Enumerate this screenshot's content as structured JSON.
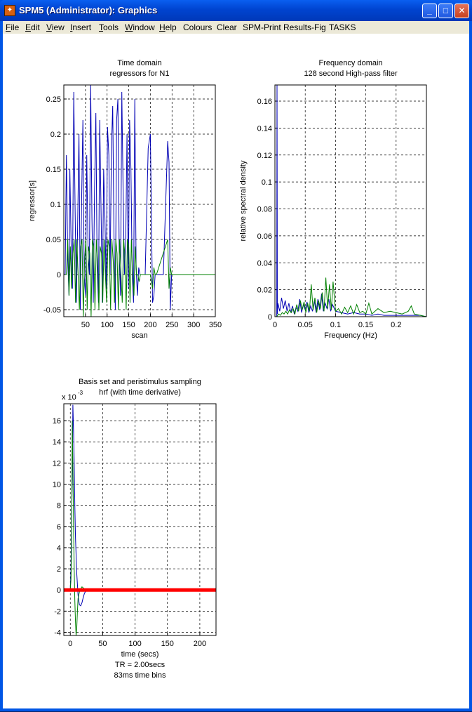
{
  "window": {
    "title": "SPM5 (Administrator): Graphics",
    "minimize_glyph": "_",
    "maximize_glyph": "□",
    "close_glyph": "✕"
  },
  "menu": {
    "items": [
      {
        "label": "File",
        "key": "F",
        "rest": "ile"
      },
      {
        "label": "Edit",
        "key": "E",
        "rest": "dit"
      },
      {
        "label": "View",
        "key": "V",
        "rest": "iew"
      },
      {
        "label": "Insert",
        "key": "I",
        "rest": "nsert"
      },
      {
        "label": "Tools",
        "key": "T",
        "rest": "ools"
      },
      {
        "label": "Window",
        "key": "W",
        "rest": "indow"
      },
      {
        "label": "Help",
        "key": "H",
        "rest": "elp"
      },
      {
        "label": "Colours",
        "key": "",
        "rest": "Colours"
      },
      {
        "label": "Clear",
        "key": "",
        "rest": "Clear"
      },
      {
        "label": "SPM-Print",
        "key": "",
        "rest": "SPM-Print"
      },
      {
        "label": "Results-Fig",
        "key": "",
        "rest": "Results-Fig"
      },
      {
        "label": "TASKS",
        "key": "",
        "rest": "TASKS"
      }
    ]
  },
  "colors": {
    "series_blue": "#0000b4",
    "series_green": "#008000",
    "zero_line_red": "#ff0000"
  },
  "chart_data": [
    {
      "type": "line",
      "title": "Time domain",
      "subtitle": "regressors for N1",
      "xlabel": "scan",
      "ylabel": "regressor[s]",
      "xlim": [
        0,
        350
      ],
      "ylim": [
        -0.06,
        0.27
      ],
      "xticks": [
        50,
        100,
        150,
        200,
        250,
        300,
        350
      ],
      "yticks": [
        -0.05,
        0,
        0.05,
        0.1,
        0.15,
        0.2,
        0.25
      ],
      "ytick_labels": [
        "-0.05",
        "0",
        "0.05",
        "0.1",
        "0.15",
        "0.2",
        "0.25"
      ],
      "grid": true,
      "series": [
        {
          "x": [
            3,
            6,
            9,
            12,
            14,
            17,
            20,
            23,
            26,
            29,
            32,
            35,
            38,
            41,
            44,
            47,
            50,
            53,
            56,
            59,
            62,
            65,
            68,
            71,
            74,
            77,
            80,
            83,
            86,
            89,
            92,
            95,
            98,
            101,
            104,
            107,
            110,
            113,
            116,
            119,
            122,
            125,
            128,
            131,
            134,
            137,
            140,
            143,
            146,
            149,
            152,
            155,
            158,
            161,
            164,
            167,
            170,
            173,
            176,
            179,
            182,
            185,
            188,
            195,
            200,
            205,
            208,
            211,
            214,
            217,
            220,
            223,
            226,
            230,
            240,
            243,
            246,
            249,
            252,
            255,
            260,
            350
          ],
          "y": [
            0,
            0.17,
            0.02,
            -0.03,
            0.15,
            0.04,
            -0.02,
            0.26,
            0.1,
            -0.04,
            0.07,
            0.2,
            -0.05,
            0.1,
            0.22,
            0.0,
            -0.03,
            0.17,
            0.03,
            0.0,
            0.27,
            0.08,
            -0.04,
            0.12,
            0.23,
            0.01,
            -0.04,
            0.22,
            0.09,
            -0.04,
            0.15,
            0.08,
            -0.02,
            0.21,
            0.17,
            0.0,
            0.18,
            0.24,
            0.05,
            -0.05,
            0.22,
            0.25,
            0.03,
            -0.03,
            0.26,
            0.12,
            0.0,
            0.05,
            0.2,
            -0.02,
            0.22,
            0.15,
            0.0,
            -0.04,
            0.25,
            0.01,
            -0.03,
            0.01,
            0.0,
            0.0,
            0.0,
            0.0,
            0.0,
            0.18,
            0.2,
            -0.04,
            -0.03,
            0.0,
            0.0,
            0.0,
            0.0,
            0.0,
            0.0,
            0.0,
            0.19,
            0.16,
            -0.05,
            0.0,
            0.0,
            0.0,
            0.0,
            0.0
          ]
        },
        {
          "x": [
            3,
            6,
            9,
            12,
            15,
            18,
            21,
            24,
            27,
            30,
            33,
            36,
            39,
            42,
            45,
            48,
            51,
            54,
            57,
            60,
            63,
            66,
            69,
            72,
            75,
            78,
            81,
            84,
            87,
            90,
            93,
            96,
            99,
            102,
            105,
            108,
            111,
            114,
            117,
            120,
            123,
            126,
            129,
            132,
            135,
            138,
            141,
            144,
            147,
            150,
            153,
            156,
            159,
            162,
            165,
            168,
            171,
            174,
            177,
            180,
            200,
            205,
            208,
            211,
            214,
            240,
            243,
            246,
            249,
            252,
            350
          ],
          "y": [
            0,
            0.0,
            0.05,
            -0.03,
            0.04,
            -0.02,
            0.03,
            0.05,
            -0.04,
            0.05,
            0.0,
            -0.05,
            0.04,
            0.05,
            -0.06,
            0.02,
            0.05,
            -0.05,
            0.04,
            0.03,
            -0.06,
            0.05,
            0.04,
            -0.05,
            0.05,
            0.02,
            -0.05,
            0.04,
            0.03,
            -0.04,
            0.05,
            0.0,
            -0.04,
            0.05,
            0.04,
            -0.05,
            0.05,
            0.02,
            -0.04,
            0.05,
            0.03,
            -0.05,
            0.05,
            0.0,
            -0.04,
            0.05,
            0.03,
            -0.05,
            0.05,
            0.04,
            -0.04,
            0.05,
            0.0,
            -0.03,
            0.04,
            0.0,
            0.0,
            -0.01,
            0.0,
            0.0,
            0.0,
            -0.02,
            0.01,
            0.0,
            0.0,
            0.05,
            -0.02,
            0.01,
            0.0,
            0.0,
            0.0
          ]
        }
      ]
    },
    {
      "type": "line",
      "title": "Frequency domain",
      "subtitle": "128 second High-pass filter",
      "xlabel": "Frequency (Hz)",
      "ylabel": "relative spectral density",
      "xlim": [
        0,
        0.25
      ],
      "ylim": [
        0,
        0.172
      ],
      "xticks": [
        0,
        0.05,
        0.1,
        0.15,
        0.2
      ],
      "xtick_labels": [
        "0",
        "0.05",
        "0.1",
        "0.15",
        "0.2"
      ],
      "yticks": [
        0,
        0.02,
        0.04,
        0.06,
        0.08,
        0.1,
        0.12,
        0.14,
        0.16
      ],
      "ytick_labels": [
        "0",
        "0.02",
        "0.04",
        "0.06",
        "0.08",
        "0.1",
        "0.12",
        "0.14",
        "0.16"
      ],
      "grid": true,
      "series": [
        {
          "x": [
            0.003,
            0.0035,
            0.004,
            0.005,
            0.008,
            0.011,
            0.014,
            0.017,
            0.02,
            0.023,
            0.026,
            0.029,
            0.032,
            0.035,
            0.038,
            0.041,
            0.044,
            0.047,
            0.05,
            0.053,
            0.056,
            0.059,
            0.062,
            0.065,
            0.068,
            0.071,
            0.074,
            0.077,
            0.08,
            0.083,
            0.086,
            0.089,
            0.092,
            0.095,
            0.1,
            0.11,
            0.12,
            0.13,
            0.14,
            0.15,
            0.16,
            0.17,
            0.18,
            0.2,
            0.22,
            0.24,
            0.25
          ],
          "y": [
            0,
            0.172,
            0.002,
            0.01,
            0.004,
            0.014,
            0.006,
            0.012,
            0.004,
            0.01,
            0.003,
            0.008,
            0.002,
            0.007,
            0.004,
            0.013,
            0.003,
            0.009,
            0.005,
            0.011,
            0.003,
            0.008,
            0.004,
            0.012,
            0.003,
            0.013,
            0.005,
            0.017,
            0.004,
            0.01,
            0.006,
            0.013,
            0.004,
            0.009,
            0.004,
            0.003,
            0.002,
            0.003,
            0.002,
            0.002,
            0.001,
            0.002,
            0.001,
            0.001,
            0.001,
            0.001,
            0.0
          ]
        },
        {
          "x": [
            0.003,
            0.006,
            0.009,
            0.012,
            0.015,
            0.018,
            0.021,
            0.024,
            0.027,
            0.03,
            0.033,
            0.036,
            0.039,
            0.042,
            0.045,
            0.048,
            0.051,
            0.054,
            0.057,
            0.06,
            0.063,
            0.066,
            0.069,
            0.072,
            0.075,
            0.078,
            0.081,
            0.084,
            0.087,
            0.09,
            0.093,
            0.096,
            0.1,
            0.105,
            0.11,
            0.115,
            0.12,
            0.125,
            0.13,
            0.135,
            0.14,
            0.145,
            0.15,
            0.155,
            0.16,
            0.17,
            0.18,
            0.19,
            0.2,
            0.21,
            0.22,
            0.225,
            0.23,
            0.24,
            0.25
          ],
          "y": [
            0,
            0.002,
            0.001,
            0.003,
            0.002,
            0.004,
            0.002,
            0.005,
            0.003,
            0.006,
            0.002,
            0.009,
            0.004,
            0.012,
            0.005,
            0.011,
            0.003,
            0.01,
            0.004,
            0.024,
            0.005,
            0.014,
            0.003,
            0.012,
            0.006,
            0.018,
            0.004,
            0.029,
            0.006,
            0.024,
            0.005,
            0.026,
            0.004,
            0.006,
            0.002,
            0.007,
            0.003,
            0.008,
            0.002,
            0.009,
            0.003,
            0.004,
            0.002,
            0.01,
            0.002,
            0.006,
            0.003,
            0.004,
            0.003,
            0.002,
            0.004,
            0.008,
            0.002,
            0.001,
            0.0
          ]
        }
      ]
    },
    {
      "type": "line",
      "title": "Basis set and peristimulus sampling",
      "subtitle": "hrf (with time derivative)",
      "xlabel": "time (secs)",
      "xlabel_line2": "TR = 2.00secs",
      "xlabel_line3": "83ms time bins",
      "scale_label": "x 10",
      "scale_exponent": "-3",
      "ylabel": "",
      "xlim": [
        -10,
        225
      ],
      "ylim": [
        -4.3,
        17.6
      ],
      "xticks": [
        0,
        50,
        100,
        150,
        200
      ],
      "yticks": [
        -4,
        -2,
        0,
        2,
        4,
        6,
        8,
        10,
        12,
        14,
        16
      ],
      "grid": true,
      "series": [
        {
          "x": [
            0,
            1,
            2,
            3,
            4,
            5,
            6,
            7,
            8,
            10,
            12,
            14,
            16,
            18,
            20,
            22,
            24,
            26,
            28,
            30,
            225
          ],
          "y": [
            0,
            2.0,
            6.0,
            11.0,
            17.5,
            15.0,
            12.0,
            8.0,
            5.0,
            1.5,
            -0.5,
            -1.4,
            -1.5,
            -1.2,
            -0.7,
            -0.3,
            -0.1,
            0.0,
            0.0,
            0.0,
            0.0
          ]
        },
        {
          "x": [
            0,
            1,
            2,
            3,
            4,
            5,
            6,
            7,
            8,
            9,
            10,
            11,
            12,
            14,
            16,
            18,
            20,
            22,
            24,
            26,
            28,
            225
          ],
          "y": [
            0,
            1.0,
            4.0,
            16.0,
            12.0,
            6.0,
            2.0,
            -1.0,
            -3.0,
            -4.3,
            -3.5,
            -2.0,
            -0.8,
            -0.2,
            0.1,
            0.3,
            0.2,
            0.1,
            0.0,
            0.0,
            0.0,
            0.0
          ]
        },
        {
          "x": [
            -10,
            225
          ],
          "y": [
            0,
            0
          ]
        }
      ]
    }
  ]
}
